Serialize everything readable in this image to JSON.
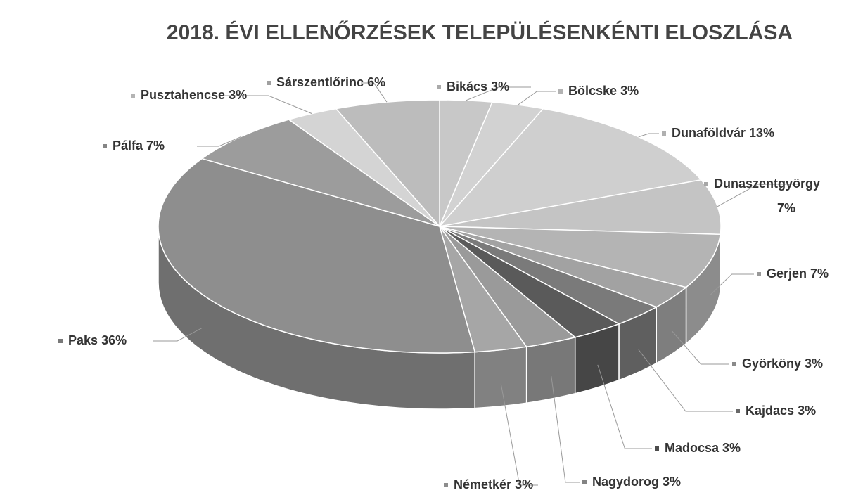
{
  "chart_data": {
    "type": "pie",
    "title": "2018. ÉVI ELLENŐRZÉSEK TELEPÜLÉSENKÉNTI ELOSZLÁSA",
    "categories": [
      "Bikács",
      "Bölcske",
      "Dunaföldvár",
      "Dunaszentgyörgy",
      "Gerjen",
      "Györköny",
      "Kajdacs",
      "Madocsa",
      "Nagydorog",
      "Németkér",
      "Paks",
      "Pálfa",
      "Pusztahencse",
      "Sárszentlőrinc"
    ],
    "values": [
      3,
      3,
      13,
      7,
      7,
      3,
      3,
      3,
      3,
      3,
      36,
      7,
      3,
      6
    ],
    "value_labels": [
      "3%",
      "3%",
      "13%",
      "7%",
      "7%",
      "3%",
      "3%",
      "3%",
      "3%",
      "3%",
      "36%",
      "7%",
      "3%",
      "6%"
    ],
    "colors": [
      "#c8c8c8",
      "#d2d2d2",
      "#cfcfcf",
      "#c4c4c4",
      "#b4b4b4",
      "#a2a2a2",
      "#7a7a7a",
      "#5a5a5a",
      "#9a9a9a",
      "#a6a6a6",
      "#8e8e8e",
      "#9c9c9c",
      "#d4d4d4",
      "#bcbcbc"
    ]
  }
}
